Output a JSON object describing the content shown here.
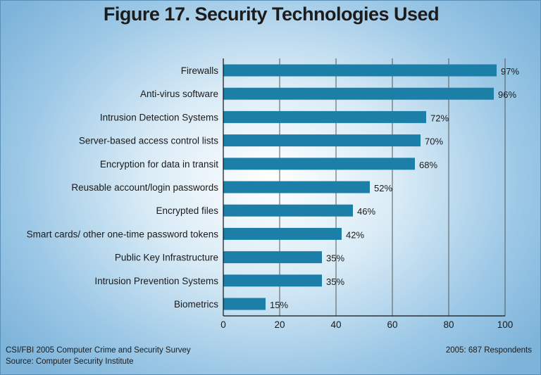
{
  "chart_data": {
    "type": "bar",
    "orientation": "horizontal",
    "title": "Figure 17. Security Technologies Used",
    "categories": [
      "Firewalls",
      "Anti-virus software",
      "Intrusion Detection Systems",
      "Server-based access control lists",
      "Encryption for data in transit",
      "Reusable account/login passwords",
      "Encrypted files",
      "Smart cards/ other one-time password tokens",
      "Public Key Infrastructure",
      "Intrusion Prevention Systems",
      "Biometrics"
    ],
    "values": [
      97,
      96,
      72,
      70,
      68,
      52,
      46,
      42,
      35,
      35,
      15
    ],
    "value_labels": [
      "97%",
      "96%",
      "72%",
      "70%",
      "68%",
      "52%",
      "46%",
      "42%",
      "35%",
      "35%",
      "15%"
    ],
    "xlim": [
      0,
      100
    ],
    "xticks": [
      0,
      20,
      40,
      60,
      80,
      100
    ],
    "grid": true,
    "bar_color": "#1b7fa8",
    "grid_color": "#555555"
  },
  "footer": {
    "source_line1": "CSI/FBI 2005 Computer Crime and Security Survey",
    "source_line2": "Source: Computer Security Institute",
    "respondents": "2005: 687 Respondents"
  }
}
